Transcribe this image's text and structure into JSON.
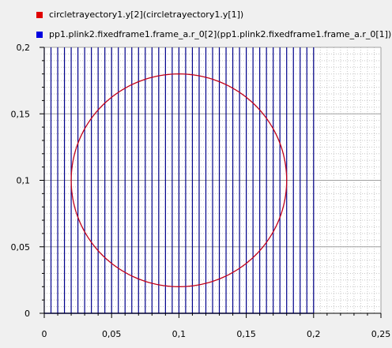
{
  "legend": [
    {
      "label": "circletrayectory1.y[2](circletrayectory1.y[1])",
      "color": "#e00000"
    },
    {
      "label": "pp1.plink2.fixedframe1.frame_a.r_0[2](pp1.plink2.fixedframe1.frame_a.r_0[1])",
      "color": "#0000e0"
    }
  ],
  "chart_data": {
    "type": "line",
    "title": "",
    "xlabel": "",
    "ylabel": "",
    "xlim": [
      0,
      0.25
    ],
    "ylim": [
      0,
      0.2
    ],
    "xticks": [
      "0",
      "0,05",
      "0,1",
      "0,15",
      "0,2",
      "0,25"
    ],
    "yticks": [
      "0",
      "0,05",
      "0,1",
      "0,15",
      "0,2"
    ],
    "grid": true,
    "legend_position": "top-left",
    "series": [
      {
        "name": "circletrayectory1.y[2](circletrayectory1.y[1])",
        "color": "#c0001a",
        "shape": "circle",
        "center": [
          0.1,
          0.1
        ],
        "radius": 0.08
      },
      {
        "name": "pp1.plink2.fixedframe1.frame_a.r_0[2](pp1.plink2.fixedframe1.frame_a.r_0[1])",
        "color": "#00008b",
        "shape": "vertical-sweep",
        "x_start": 0,
        "x_end": 0.2,
        "line_count": 41,
        "y_range": [
          0,
          0.2
        ]
      }
    ]
  }
}
